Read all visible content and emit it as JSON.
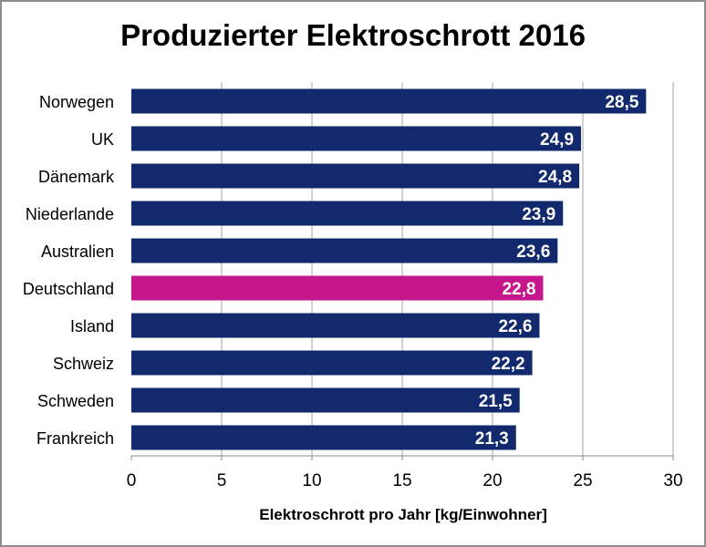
{
  "chart_data": {
    "type": "bar",
    "orientation": "horizontal",
    "title": "Produzierter Elektroschrott 2016",
    "xlabel": "Elektroschrott pro Jahr [kg/Einwohner]",
    "ylabel": "",
    "xlim": [
      0,
      30
    ],
    "xticks": [
      "0",
      "5",
      "10",
      "15",
      "20",
      "25",
      "30"
    ],
    "grid": true,
    "legend": "none",
    "categories": [
      "Norwegen",
      "UK",
      "Dänemark",
      "Niederlande",
      "Australien",
      "Deutschland",
      "Island",
      "Schweiz",
      "Schweden",
      "Frankreich"
    ],
    "values": [
      28.5,
      24.9,
      24.8,
      23.9,
      23.6,
      22.8,
      22.6,
      22.2,
      21.5,
      21.3
    ],
    "data_labels": [
      "28,5",
      "24,9",
      "24,8",
      "23,9",
      "23,6",
      "22,8",
      "22,6",
      "22,2",
      "21,5",
      "21,3"
    ],
    "colors": {
      "default": "#12296e",
      "highlight": "#c5168c",
      "highlight_category": "Deutschland",
      "label": "#ffffff",
      "grid": "#a6a6a6"
    }
  }
}
